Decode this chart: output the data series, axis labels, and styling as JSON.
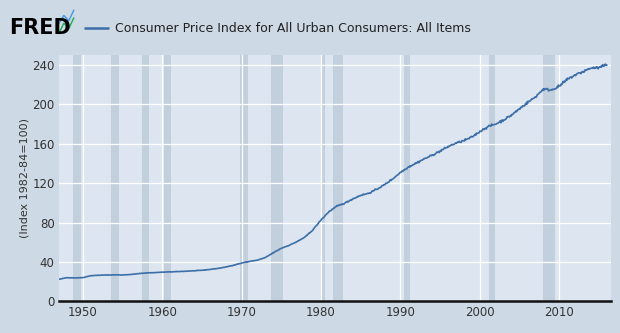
{
  "title": "Consumer Price Index for All Urban Consumers: All Items",
  "ylabel": "(Index 1982-84=100)",
  "line_color": "#3d6fa8",
  "bg_outer": "#cdd9e5",
  "bg_plot": "#dde6f0",
  "grid_color": "#ffffff",
  "shade_color": "#c2cfdc",
  "line_width": 1.2,
  "xlim": [
    1947.0,
    2016.5
  ],
  "ylim": [
    0,
    250
  ],
  "yticks": [
    0,
    40,
    80,
    120,
    160,
    200,
    240
  ],
  "xticks": [
    1950,
    1960,
    1970,
    1980,
    1990,
    2000,
    2010
  ],
  "shade_intervals": [
    [
      1948.75,
      1949.83
    ],
    [
      1953.5,
      1954.58
    ],
    [
      1957.5,
      1958.33
    ],
    [
      1960.25,
      1961.08
    ],
    [
      1969.83,
      1970.83
    ],
    [
      1973.75,
      1975.17
    ],
    [
      1980.0,
      1980.5
    ],
    [
      1981.5,
      1982.83
    ],
    [
      1990.5,
      1991.17
    ],
    [
      2001.17,
      2001.92
    ],
    [
      2007.92,
      2009.5
    ]
  ],
  "fred_text_color": "#000000",
  "legend_line_color": "#3d6fa8",
  "title_fontsize": 9,
  "tick_fontsize": 8.5,
  "ylabel_fontsize": 8
}
